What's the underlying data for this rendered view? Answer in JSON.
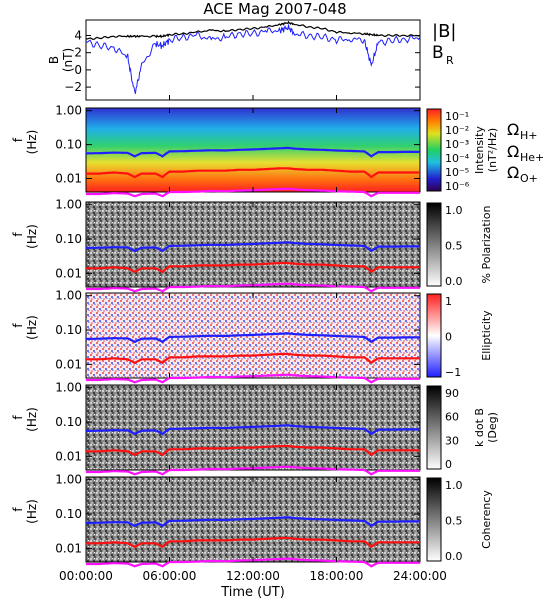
{
  "title": "ACE Mag 2007-048",
  "colors": {
    "magnitude": "#000000",
    "radial": "#1f1fff",
    "h_plus": "#1f1fff",
    "he_plus": "#ff1010",
    "o_plus": "#ff10ff"
  },
  "time_axis": {
    "label": "Time (UT)",
    "ticks": [
      "00:00:00",
      "06:00:00",
      "12:00:00",
      "18:00:00",
      "24:00:00"
    ],
    "range_hours": [
      0,
      24
    ]
  },
  "panel_b": {
    "ylabel_top": "B",
    "ylabel_bottom": "(nT)",
    "legend_mag": "|B|",
    "legend_radial_main": "B",
    "legend_radial_sub": "R",
    "yticks": [
      "4",
      "2",
      "0",
      "−2"
    ]
  },
  "freq_ticks": [
    "1.00",
    "0.10",
    "0.01"
  ],
  "freq_label_top": "f",
  "freq_label_bottom": "(Hz)",
  "gyro_legend": {
    "symbol": "Ω",
    "h_sub": "H+",
    "he_sub": "He+",
    "o_sub": "O+"
  },
  "panels": [
    {
      "id": "intensity",
      "scale_label_1": "Intensity",
      "scale_label_2": "(nT²/Hz)",
      "ticks": [
        "10⁻¹",
        "10⁻²",
        "10⁻³",
        "10⁻⁴",
        "10⁻⁵",
        "10⁻⁶"
      ]
    },
    {
      "id": "polarization",
      "scale_label_1": "% Polarization",
      "scale_label_2": "",
      "ticks": [
        "1.0",
        "0.5",
        "0.0"
      ]
    },
    {
      "id": "ellipticity",
      "scale_label_1": "Ellipticity",
      "scale_label_2": "",
      "ticks": [
        "1",
        "0",
        "−1"
      ]
    },
    {
      "id": "kdotb",
      "scale_label_1": "k dot B",
      "scale_label_2": "(Deg)",
      "ticks": [
        "90",
        "60",
        "30",
        "0"
      ]
    },
    {
      "id": "coherency",
      "scale_label_1": "Coherency",
      "scale_label_2": "",
      "ticks": [
        "1.0",
        "0.5",
        "0.0"
      ]
    }
  ],
  "chart_data": {
    "type": "line",
    "title": "ACE Mag 2007-048",
    "xlabel": "Time (UT)",
    "x_hours": [
      0,
      1,
      2,
      3,
      3.5,
      4,
      5,
      5.5,
      6,
      7,
      8,
      9,
      10,
      11,
      12,
      13,
      14,
      14.5,
      15,
      16,
      17,
      18,
      19,
      20,
      20.5,
      21,
      22,
      23,
      24
    ],
    "b_magnitude_nT": [
      3.6,
      3.7,
      3.9,
      3.9,
      3.9,
      3.9,
      3.9,
      3.9,
      4.1,
      4.2,
      4.4,
      4.6,
      4.5,
      4.7,
      4.8,
      5.0,
      5.3,
      5.5,
      5.3,
      5.0,
      4.8,
      4.4,
      4.3,
      4.2,
      4.1,
      4.0,
      4.0,
      4.0,
      4.0
    ],
    "b_radial_nT": [
      3.3,
      2.8,
      2.6,
      1.5,
      -2.8,
      0.5,
      3.0,
      2.8,
      3.5,
      3.8,
      4.0,
      3.5,
      3.8,
      4.2,
      4.2,
      4.5,
      4.6,
      5.0,
      4.2,
      4.0,
      3.8,
      3.5,
      3.6,
      3.5,
      0.5,
      3.2,
      3.4,
      3.6,
      3.8
    ],
    "b_ylim": [
      -3.5,
      5.8
    ],
    "freq_ylim_hz": [
      0.004,
      1.2
    ],
    "gyrofrequencies": {
      "H+": [
        0.055,
        0.056,
        0.058,
        0.057,
        0.045,
        0.056,
        0.057,
        0.045,
        0.063,
        0.064,
        0.066,
        0.068,
        0.067,
        0.07,
        0.072,
        0.075,
        0.078,
        0.08,
        0.076,
        0.072,
        0.07,
        0.067,
        0.065,
        0.063,
        0.045,
        0.06,
        0.06,
        0.061,
        0.061
      ],
      "He+": [
        0.014,
        0.014,
        0.015,
        0.014,
        0.011,
        0.014,
        0.014,
        0.011,
        0.016,
        0.016,
        0.017,
        0.017,
        0.017,
        0.018,
        0.018,
        0.019,
        0.02,
        0.02,
        0.019,
        0.018,
        0.018,
        0.017,
        0.016,
        0.016,
        0.011,
        0.015,
        0.015,
        0.015,
        0.015
      ],
      "O+": [
        0.0035,
        0.0035,
        0.0037,
        0.0036,
        0.003,
        0.0035,
        0.0036,
        0.003,
        0.004,
        0.004,
        0.0041,
        0.0043,
        0.0042,
        0.0044,
        0.0045,
        0.0047,
        0.0049,
        0.005,
        0.0048,
        0.0045,
        0.0044,
        0.0042,
        0.0041,
        0.004,
        0.003,
        0.0038,
        0.0038,
        0.0038,
        0.0038
      ]
    },
    "legend": [
      "|B|",
      "B_R",
      "Ω_H+",
      "Ω_He+",
      "Ω_O+"
    ]
  }
}
